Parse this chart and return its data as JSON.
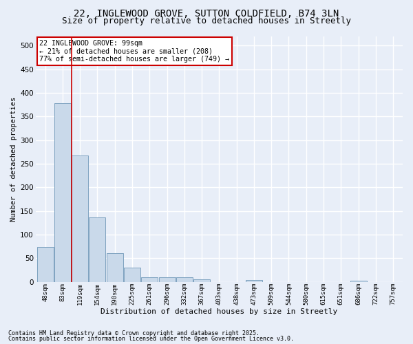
{
  "title1": "22, INGLEWOOD GROVE, SUTTON COLDFIELD, B74 3LN",
  "title2": "Size of property relative to detached houses in Streetly",
  "categories": [
    "48sqm",
    "83sqm",
    "119sqm",
    "154sqm",
    "190sqm",
    "225sqm",
    "261sqm",
    "296sqm",
    "332sqm",
    "367sqm",
    "403sqm",
    "438sqm",
    "473sqm",
    "509sqm",
    "544sqm",
    "580sqm",
    "615sqm",
    "651sqm",
    "686sqm",
    "722sqm",
    "757sqm"
  ],
  "bar_values": [
    74,
    378,
    267,
    136,
    61,
    30,
    10,
    10,
    10,
    5,
    0,
    0,
    4,
    0,
    0,
    0,
    0,
    0,
    3,
    0,
    0
  ],
  "xlabel": "Distribution of detached houses by size in Streetly",
  "ylabel": "Number of detached properties",
  "ylim": [
    0,
    520
  ],
  "yticks": [
    0,
    50,
    100,
    150,
    200,
    250,
    300,
    350,
    400,
    450,
    500
  ],
  "bar_color": "#c9d9ea",
  "bar_edge_color": "#7098b8",
  "vline_x": 1.5,
  "vline_color": "#cc0000",
  "annotation_text": "22 INGLEWOOD GROVE: 99sqm\n← 21% of detached houses are smaller (208)\n77% of semi-detached houses are larger (749) →",
  "annotation_box_facecolor": "#ffffff",
  "annotation_box_edgecolor": "#cc0000",
  "footnote1": "Contains HM Land Registry data © Crown copyright and database right 2025.",
  "footnote2": "Contains public sector information licensed under the Open Government Licence v3.0.",
  "bg_color": "#e8eef8",
  "grid_color": "#ffffff",
  "title_fontsize": 10,
  "subtitle_fontsize": 9
}
